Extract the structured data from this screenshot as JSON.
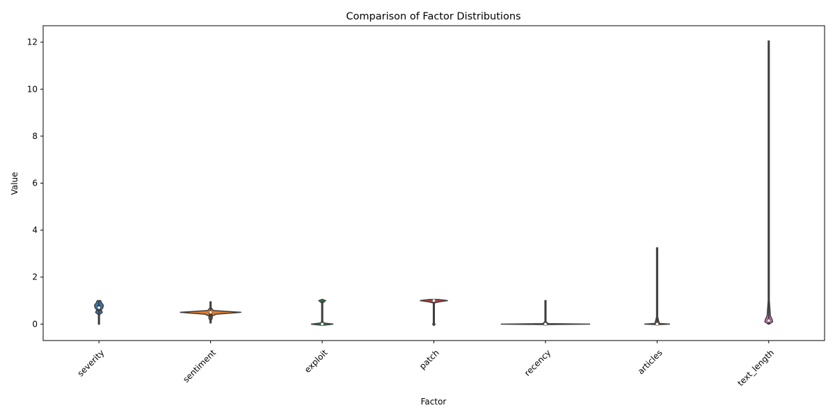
{
  "chart_data": {
    "type": "violin",
    "title": "Comparison of Factor Distributions",
    "xlabel": "Factor",
    "ylabel": "Value",
    "ylim": [
      -0.7,
      12.7
    ],
    "yticks": [
      0,
      2,
      4,
      6,
      8,
      10,
      12
    ],
    "categories": [
      "severity",
      "sentiment",
      "exploit",
      "patch",
      "recency",
      "articles",
      "text_length"
    ],
    "distributions": [
      {
        "category": "severity",
        "min": 0.0,
        "max": 1.0,
        "q1": 0.55,
        "median": 0.7,
        "q3": 0.8,
        "color": "#3a78b5",
        "profile": [
          [
            0.0,
            0.002
          ],
          [
            0.1,
            0.002
          ],
          [
            0.2,
            0.002
          ],
          [
            0.3,
            0.003
          ],
          [
            0.4,
            0.004
          ],
          [
            0.5,
            0.06
          ],
          [
            0.6,
            0.04
          ],
          [
            0.7,
            0.07
          ],
          [
            0.8,
            0.08
          ],
          [
            0.9,
            0.05
          ],
          [
            1.0,
            0.03
          ]
        ]
      },
      {
        "category": "sentiment",
        "min": 0.05,
        "max": 0.95,
        "q1": 0.3,
        "median": 0.5,
        "q3": 0.5,
        "color": "#e07b2a",
        "profile": [
          [
            0.05,
            0.002
          ],
          [
            0.15,
            0.01
          ],
          [
            0.25,
            0.03
          ],
          [
            0.35,
            0.03
          ],
          [
            0.42,
            0.1
          ],
          [
            0.5,
            0.55
          ],
          [
            0.58,
            0.05
          ],
          [
            0.7,
            0.004
          ],
          [
            0.85,
            0.003
          ],
          [
            0.95,
            0.002
          ]
        ]
      },
      {
        "category": "exploit",
        "min": 0.0,
        "max": 1.0,
        "q1": 0.0,
        "median": 0.0,
        "q3": 0.0,
        "color": "#2e8b40",
        "profile": [
          [
            -0.05,
            0.02
          ],
          [
            0.0,
            0.2
          ],
          [
            0.05,
            0.02
          ],
          [
            0.15,
            0.008
          ],
          [
            0.5,
            0.007
          ],
          [
            0.9,
            0.01
          ],
          [
            1.0,
            0.06
          ],
          [
            1.05,
            0.005
          ]
        ]
      },
      {
        "category": "patch",
        "min": 0.0,
        "max": 1.0,
        "q1": 1.0,
        "median": 1.0,
        "q3": 1.0,
        "color": "#c23a3a",
        "profile": [
          [
            -0.05,
            0.005
          ],
          [
            0.0,
            0.02
          ],
          [
            0.05,
            0.004
          ],
          [
            0.5,
            0.003
          ],
          [
            0.9,
            0.01
          ],
          [
            0.95,
            0.1
          ],
          [
            1.0,
            0.25
          ],
          [
            1.05,
            0.08
          ]
        ]
      },
      {
        "category": "recency",
        "min": 0.0,
        "max": 1.0,
        "q1": 0.0,
        "median": 0.0,
        "q3": 0.0,
        "color": "#8a63b8",
        "profile": [
          [
            -0.02,
            0.05
          ],
          [
            0.0,
            0.8
          ],
          [
            0.02,
            0.05
          ],
          [
            0.1,
            0.005
          ],
          [
            0.5,
            0.004
          ],
          [
            0.95,
            0.004
          ],
          [
            1.0,
            0.006
          ]
        ]
      },
      {
        "category": "articles",
        "min": 0.0,
        "max": 3.25,
        "q1": 0.0,
        "median": 0.0,
        "q3": 0.0,
        "color": "#8b5a4a",
        "profile": [
          [
            -0.02,
            0.03
          ],
          [
            0.0,
            0.23
          ],
          [
            0.03,
            0.04
          ],
          [
            0.3,
            0.007
          ],
          [
            1.0,
            0.004
          ],
          [
            2.0,
            0.004
          ],
          [
            3.25,
            0.004
          ]
        ]
      },
      {
        "category": "text_length",
        "min": 0.0,
        "max": 12.05,
        "q1": 0.1,
        "median": 0.15,
        "q3": 0.22,
        "color": "#d977b8",
        "profile": [
          [
            0.0,
            0.01
          ],
          [
            0.05,
            0.04
          ],
          [
            0.1,
            0.07
          ],
          [
            0.2,
            0.06
          ],
          [
            0.35,
            0.03
          ],
          [
            1.0,
            0.006
          ],
          [
            4.0,
            0.004
          ],
          [
            8.0,
            0.004
          ],
          [
            12.05,
            0.004
          ]
        ]
      }
    ],
    "grid": false,
    "legend": "none"
  }
}
